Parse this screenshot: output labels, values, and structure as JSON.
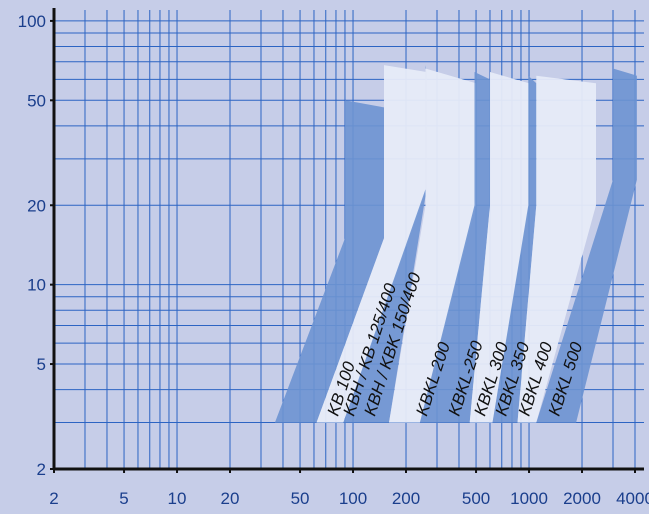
{
  "chart_data": {
    "type": "area",
    "title": "",
    "xlabel": "",
    "ylabel": "",
    "x_scale": "log",
    "y_scale": "log",
    "xlim": [
      2,
      4500
    ],
    "ylim": [
      2,
      110
    ],
    "grid": true,
    "x_ticks": [
      2,
      5,
      10,
      20,
      50,
      100,
      200,
      500,
      1000,
      2000,
      4000
    ],
    "x_tick_labels": [
      "2",
      "5",
      "10",
      "20",
      "50",
      "100",
      "200",
      "500",
      "1000",
      "2000",
      "4000"
    ],
    "y_ticks": [
      2,
      5,
      10,
      20,
      50,
      100
    ],
    "y_tick_labels": [
      "2",
      "5",
      "10",
      "20",
      "50",
      "100"
    ],
    "x_minor_grid": [
      3,
      4,
      6,
      7,
      8,
      9,
      30,
      40,
      60,
      70,
      80,
      90,
      300,
      400,
      600,
      700,
      800,
      900,
      3000
    ],
    "y_minor_grid": [
      3,
      4,
      6,
      7,
      8,
      9,
      30,
      40,
      60,
      70,
      80,
      90
    ],
    "colors": {
      "background": "#c6cde8",
      "grid": "#2c64c3",
      "axis": "#111111",
      "band_dark": "#6d93d1",
      "band_light": "#e7ebf8"
    },
    "series": [
      {
        "label": "KB 100",
        "fill": "dark",
        "polygon": [
          [
            36,
            3
          ],
          [
            62,
            3
          ],
          [
            150,
            15
          ],
          [
            150,
            47
          ],
          [
            90,
            50
          ],
          [
            90,
            15
          ]
        ]
      },
      {
        "label": "KBH / KB 125/400",
        "fill": "light",
        "polygon": [
          [
            62,
            3
          ],
          [
            88,
            3
          ],
          [
            262,
            23
          ],
          [
            262,
            64
          ],
          [
            150,
            68
          ],
          [
            150,
            15
          ]
        ]
      },
      {
        "label": "KBH / KBK 150/400",
        "fill": "dark",
        "polygon": [
          [
            88,
            3
          ],
          [
            160,
            3
          ],
          [
            262,
            23
          ],
          [
            262,
            64
          ],
          [
            258,
            68
          ],
          [
            258,
            23
          ]
        ]
      },
      {
        "label": "KBKL 200",
        "fill": "light",
        "polygon": [
          [
            160,
            3
          ],
          [
            240,
            3
          ],
          [
            500,
            20
          ],
          [
            500,
            58
          ],
          [
            258,
            66
          ],
          [
            258,
            20
          ]
        ]
      },
      {
        "label": "KBKL-250",
        "fill": "dark",
        "polygon": [
          [
            240,
            3
          ],
          [
            460,
            3
          ],
          [
            600,
            20
          ],
          [
            600,
            60
          ],
          [
            490,
            64
          ],
          [
            490,
            20
          ]
        ]
      },
      {
        "label": "KBKL 300",
        "fill": "light",
        "polygon": [
          [
            460,
            3
          ],
          [
            620,
            3
          ],
          [
            1000,
            20
          ],
          [
            1000,
            58
          ],
          [
            600,
            64
          ],
          [
            600,
            20
          ]
        ]
      },
      {
        "label": "KBKL 350",
        "fill": "dark",
        "polygon": [
          [
            620,
            3
          ],
          [
            860,
            3
          ],
          [
            1100,
            20
          ],
          [
            1100,
            58
          ],
          [
            990,
            62
          ],
          [
            990,
            20
          ]
        ]
      },
      {
        "label": "KBKL 400",
        "fill": "light",
        "polygon": [
          [
            860,
            3
          ],
          [
            1100,
            3
          ],
          [
            2400,
            20
          ],
          [
            2400,
            58
          ],
          [
            1100,
            62
          ],
          [
            1100,
            20
          ]
        ]
      },
      {
        "label": "KBKL 500",
        "fill": "dark",
        "polygon": [
          [
            1100,
            3
          ],
          [
            1850,
            3
          ],
          [
            4100,
            25
          ],
          [
            4100,
            62
          ],
          [
            3000,
            66
          ],
          [
            3000,
            25
          ]
        ]
      }
    ],
    "band_labels": [
      {
        "text": "KB 100",
        "x": 82,
        "y": 3.15
      },
      {
        "text": "KBH / KB 125/400",
        "x": 101,
        "y": 3.15
      },
      {
        "text": "KBH / KBK 150/400",
        "x": 133,
        "y": 3.15
      },
      {
        "text": "KBKL 200",
        "x": 262,
        "y": 3.15
      },
      {
        "text": "KBKL-250",
        "x": 400,
        "y": 3.15
      },
      {
        "text": "KBKL 300",
        "x": 560,
        "y": 3.15
      },
      {
        "text": "KBKL 350",
        "x": 740,
        "y": 3.15
      },
      {
        "text": "KBKL 400",
        "x": 1000,
        "y": 3.15
      },
      {
        "text": "KBKL 500",
        "x": 1480,
        "y": 3.15
      }
    ]
  }
}
